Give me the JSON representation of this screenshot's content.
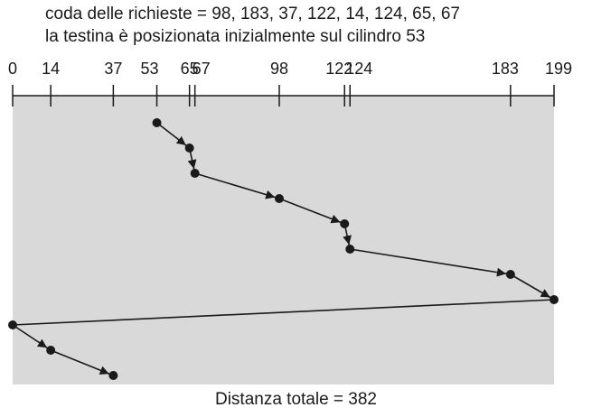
{
  "header": {
    "queue_line": "coda delle richieste = 98, 183, 37, 122, 14, 124, 65, 67",
    "head_line": "la testina è posizionata inizialmente sul cilindro 53"
  },
  "axis": {
    "min": 0,
    "max": 199,
    "ticks": [
      0,
      14,
      37,
      53,
      65,
      67,
      98,
      122,
      124,
      183,
      199
    ]
  },
  "path": [
    53,
    65,
    67,
    98,
    122,
    124,
    183,
    199,
    0,
    14,
    37
  ],
  "footer": {
    "total_distance": "Distanza totale = 382"
  },
  "colors": {
    "panel": "#d9d9d9",
    "ink": "#1a1a1a"
  }
}
